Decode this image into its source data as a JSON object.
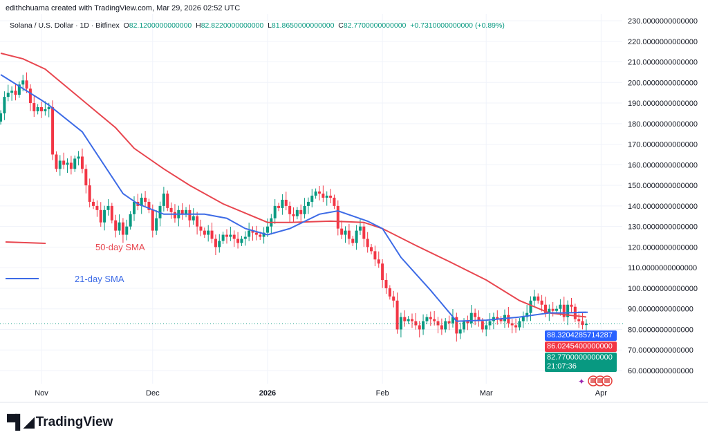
{
  "header": {
    "credit": "edithchuama created with TradingView.com, Mar 29, 2026 02:52 UTC",
    "symbol": "Solana / U.S. Dollar · 1D · Bitfinex",
    "open_label": "O",
    "open": "82.1200000000000",
    "high_label": "H",
    "high": "82.8220000000000",
    "low_label": "L",
    "low": "81.8650000000000",
    "close_label": "C",
    "close": "82.7700000000000",
    "change": "+0.7310000000000 (+0.89%)"
  },
  "price_badges": {
    "sma21": "88.3204285714287",
    "sma50": "86.0245400000000",
    "last": "82.7700000000000",
    "countdown": "21:07:36"
  },
  "annotations": {
    "sma50": "50-day SMA",
    "sma21": "21-day SMA"
  },
  "footer": {
    "brand": "TradingView"
  },
  "colors": {
    "up": "#089981",
    "down": "#F23645",
    "sma50": "#E8464F",
    "sma21": "#3D6BE6",
    "badge_sma21": "#2962FF"
  },
  "chart_data": {
    "type": "candlestick",
    "start_date": "2025-10-21",
    "interval": "1D",
    "closes": [
      185,
      193,
      195,
      196,
      194,
      199,
      201,
      197,
      190,
      186,
      188,
      186,
      187,
      188,
      165,
      158,
      162,
      160,
      161,
      158,
      163,
      164,
      158,
      150,
      142,
      140,
      138,
      132,
      138,
      140,
      133,
      128,
      132,
      126,
      130,
      136,
      142,
      140,
      144,
      142,
      138,
      128,
      134,
      140,
      146,
      139,
      137,
      134,
      138,
      136,
      138,
      133,
      135,
      130,
      128,
      126,
      128,
      124,
      120,
      123,
      126,
      125,
      126,
      124,
      122,
      124,
      125,
      128,
      127,
      126,
      125,
      127,
      130,
      134,
      140,
      139,
      143,
      140,
      136,
      135,
      138,
      136,
      140,
      142,
      145,
      147,
      146,
      144,
      145,
      144,
      140,
      129,
      126,
      128,
      124,
      122,
      128,
      130,
      124,
      120,
      118,
      114,
      112,
      104,
      100,
      96,
      94,
      80,
      86,
      84,
      85,
      84,
      82,
      80,
      84,
      86,
      85,
      84,
      82,
      80,
      84,
      83,
      86,
      78,
      80,
      84,
      83,
      88,
      86,
      84,
      80,
      82,
      84,
      86,
      85,
      84,
      87,
      83,
      82,
      81,
      84,
      86,
      88,
      94,
      96,
      94,
      92,
      88,
      90,
      89,
      90,
      92,
      86,
      92,
      91,
      85,
      84,
      82.12,
      82.77
    ],
    "sma50": [
      [
        "2025-10-21",
        214.2
      ],
      [
        "2025-10-27",
        211.5
      ],
      [
        "2025-11-02",
        206.5
      ],
      [
        "2025-11-11",
        193
      ],
      [
        "2025-11-21",
        178
      ],
      [
        "2025-11-26",
        168
      ],
      [
        "2025-12-04",
        158
      ],
      [
        "2025-12-11",
        150
      ],
      [
        "2025-12-20",
        141
      ],
      [
        "2026-01-01",
        132
      ],
      [
        "2026-01-07",
        132
      ],
      [
        "2026-01-18",
        132.6
      ],
      [
        "2026-01-27",
        132
      ],
      [
        "2026-02-01",
        129
      ],
      [
        "2026-02-10",
        120.8
      ],
      [
        "2026-02-19",
        113
      ],
      [
        "2026-03-01",
        104
      ],
      [
        "2026-03-10",
        94
      ],
      [
        "2026-03-18",
        88
      ],
      [
        "2026-03-23",
        87
      ],
      [
        "2026-03-28",
        86.02
      ]
    ],
    "sma21": [
      [
        "2025-10-21",
        203.8
      ],
      [
        "2025-11-01",
        191.4
      ],
      [
        "2025-11-03",
        189
      ],
      [
        "2025-11-12",
        176
      ],
      [
        "2025-11-23",
        146
      ],
      [
        "2025-11-27",
        141
      ],
      [
        "2025-12-04",
        136
      ],
      [
        "2025-12-15",
        136
      ],
      [
        "2025-12-21",
        134
      ],
      [
        "2025-12-26",
        129
      ],
      [
        "2026-01-01",
        126
      ],
      [
        "2026-01-07",
        129
      ],
      [
        "2026-01-15",
        136
      ],
      [
        "2026-01-20",
        137.6
      ],
      [
        "2026-01-28",
        132.6
      ],
      [
        "2026-02-01",
        129
      ],
      [
        "2026-02-06",
        115
      ],
      [
        "2026-02-14",
        99
      ],
      [
        "2026-02-21",
        84
      ],
      [
        "2026-03-01",
        84.5
      ],
      [
        "2026-03-10",
        86
      ],
      [
        "2026-03-18",
        88
      ],
      [
        "2026-03-22",
        88
      ],
      [
        "2026-03-28",
        88.32
      ]
    ],
    "y_ticks": [
      "230.0000000000000",
      "220.0000000000000",
      "210.0000000000000",
      "200.0000000000000",
      "190.0000000000000",
      "180.0000000000000",
      "170.0000000000000",
      "160.0000000000000",
      "150.0000000000000",
      "140.0000000000000",
      "130.0000000000000",
      "120.0000000000000",
      "110.0000000000000",
      "100.0000000000000",
      "90.0000000000000",
      "80.0000000000000",
      "70.0000000000000",
      "60.0000000000000"
    ],
    "y_tick_values": [
      230,
      220,
      210,
      200,
      190,
      180,
      170,
      160,
      150,
      140,
      130,
      120,
      110,
      100,
      90,
      80,
      70,
      60
    ],
    "x_ticks": [
      "Nov",
      "Dec",
      "2026",
      "Feb",
      "Mar",
      "Apr"
    ],
    "x_tick_dates": [
      "2025-11-01",
      "2025-12-01",
      "2026-01-01",
      "2026-02-01",
      "2026-03-01",
      "2026-04-01"
    ],
    "ylim": [
      55,
      232
    ],
    "grid": true
  }
}
